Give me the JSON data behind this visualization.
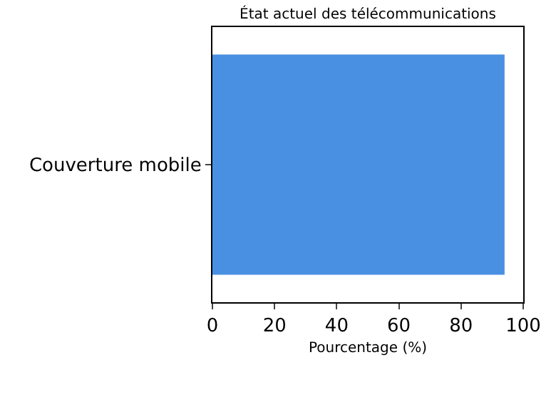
{
  "chart_data": {
    "type": "bar",
    "orientation": "horizontal",
    "title": "État actuel des télécommunications",
    "xlabel": "Pourcentage (%)",
    "categories": [
      "Couverture mobile"
    ],
    "values": [
      94
    ],
    "color": "#4a90e2",
    "xlim": [
      0,
      100
    ],
    "xticks": [
      0,
      20,
      40,
      60,
      80,
      100
    ],
    "legend": false
  }
}
